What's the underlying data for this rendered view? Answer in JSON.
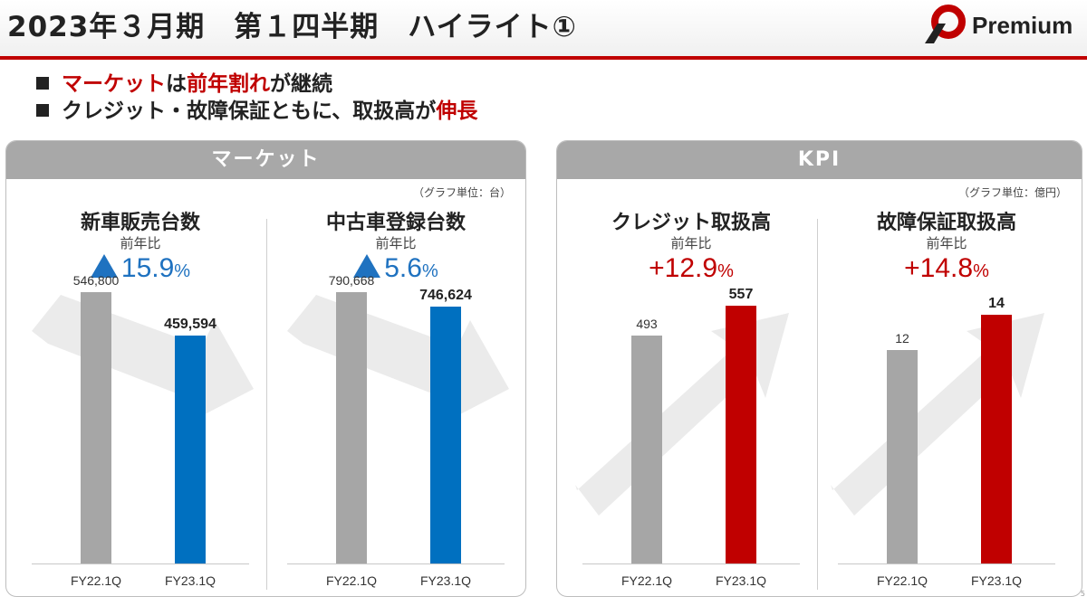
{
  "header": {
    "title": "2023年３月期　第１四半期　ハイライト①",
    "logo_text": "Premium"
  },
  "bullets": [
    {
      "parts": [
        {
          "text": "マーケット",
          "red": true
        },
        {
          "text": "は",
          "red": false
        },
        {
          "text": "前年割れ",
          "red": true
        },
        {
          "text": "が継続",
          "red": false
        }
      ]
    },
    {
      "parts": [
        {
          "text": "クレジット・故障保証ともに、取扱高が",
          "red": false
        },
        {
          "text": "伸長",
          "red": true
        }
      ]
    }
  ],
  "panels": {
    "market": {
      "header": "マーケット",
      "unit": "（グラフ単位：台）"
    },
    "kpi": {
      "header": "KPI",
      "unit": "（グラフ単位：億円）"
    }
  },
  "colors": {
    "gray_bar": "#a6a6a6",
    "blue_bar": "#0070c0",
    "red_bar": "#c00000",
    "accent_red": "#c00000"
  },
  "chart_data": [
    {
      "type": "bar",
      "title": "新車販売台数",
      "subtitle": "前年比",
      "change": "▲15.9",
      "change_unit": "%",
      "change_color": "blue",
      "arrow_direction": "down",
      "categories": [
        "FY22.1Q",
        "FY23.1Q"
      ],
      "values": [
        546800,
        459594
      ],
      "value_labels": [
        "546,800",
        "459,594"
      ],
      "ylim": [
        0,
        620000
      ]
    },
    {
      "type": "bar",
      "title": "中古車登録台数",
      "subtitle": "前年比",
      "change": "▲5.6",
      "change_unit": "%",
      "change_color": "blue",
      "arrow_direction": "down",
      "categories": [
        "FY22.1Q",
        "FY23.1Q"
      ],
      "values": [
        790668,
        746624
      ],
      "value_labels": [
        "790,668",
        "746,624"
      ],
      "ylim": [
        0,
        895000
      ]
    },
    {
      "type": "bar",
      "title": "クレジット取扱高",
      "subtitle": "前年比",
      "change": "+12.9",
      "change_unit": "%",
      "change_color": "red",
      "arrow_direction": "up",
      "categories": [
        "FY22.1Q",
        "FY23.1Q"
      ],
      "values": [
        493,
        557
      ],
      "value_labels": [
        "493",
        "557"
      ],
      "ylim": [
        0,
        665
      ]
    },
    {
      "type": "bar",
      "title": "故障保証取扱高",
      "subtitle": "前年比",
      "change": "+14.8",
      "change_unit": "%",
      "change_color": "red",
      "arrow_direction": "up",
      "categories": [
        "FY22.1Q",
        "FY23.1Q"
      ],
      "values": [
        12,
        14
      ],
      "value_labels": [
        "12",
        "14"
      ],
      "ylim": [
        0,
        17.3
      ]
    }
  ]
}
